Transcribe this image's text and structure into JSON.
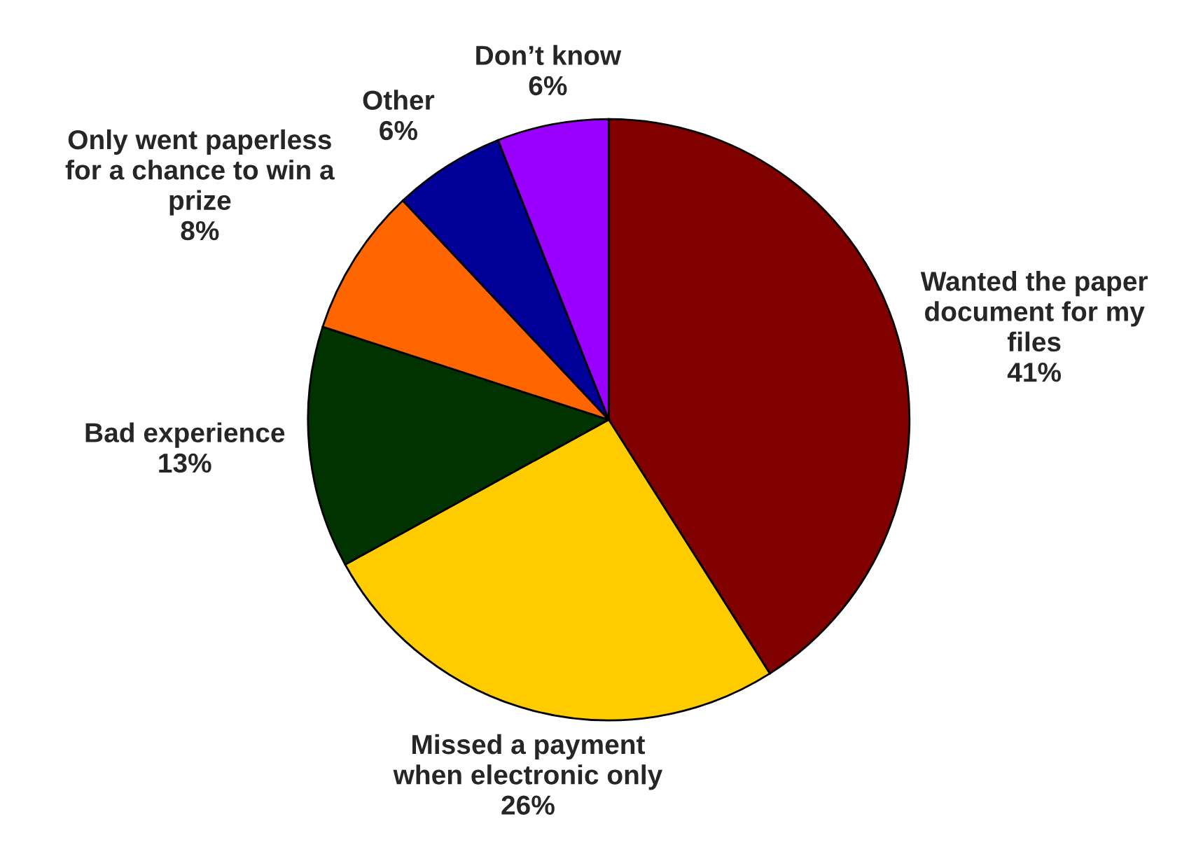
{
  "chart_data": {
    "type": "pie",
    "categories": [
      "Wanted the paper\ndocument for my\nfiles",
      "Missed a payment\nwhen electronic only",
      "Bad experience",
      "Only went paperless\nfor a chance to win a\nprize",
      "Other",
      "Don’t know"
    ],
    "values": [
      41,
      26,
      13,
      8,
      6,
      6
    ],
    "value_labels": [
      "41%",
      "26%",
      "13%",
      "8%",
      "6%",
      "6%"
    ],
    "colors": [
      "#800000",
      "#ffcc00",
      "#003300",
      "#ff6600",
      "#000099",
      "#9900ff"
    ]
  }
}
